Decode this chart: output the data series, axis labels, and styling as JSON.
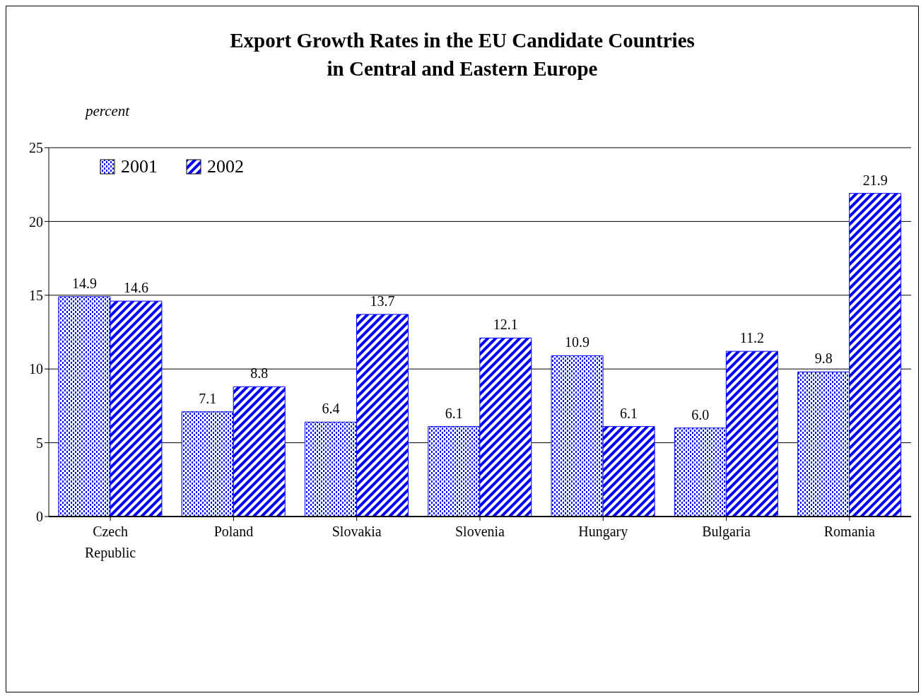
{
  "chart_data": {
    "type": "bar",
    "title": "Export Growth Rates in the EU Candidate Countries\nin Central and Eastern Europe",
    "ylabel": "percent",
    "categories": [
      "Czech\nRepublic",
      "Poland",
      "Slovakia",
      "Slovenia",
      "Hungary",
      "Bulgaria",
      "Romania"
    ],
    "series": [
      {
        "name": "2001",
        "color": "#0000ff",
        "values": [
          14.9,
          7.1,
          6.4,
          6.1,
          10.9,
          6.0,
          9.8
        ],
        "value_labels": [
          "14.9",
          "7.1",
          "6.4",
          "6.1",
          "10.9",
          "6.0",
          "9.8"
        ]
      },
      {
        "name": "2002",
        "color": "#0000ff",
        "values": [
          14.6,
          8.8,
          13.7,
          12.1,
          6.1,
          11.2,
          21.9
        ],
        "value_labels": [
          "14.6",
          "8.8",
          "13.7",
          "12.1",
          "6.1",
          "11.2",
          "21.9"
        ]
      }
    ],
    "ylim": [
      0,
      25
    ],
    "yticks": [
      0,
      5,
      10,
      15,
      20,
      25
    ],
    "grid": "y",
    "legend": "top left"
  }
}
